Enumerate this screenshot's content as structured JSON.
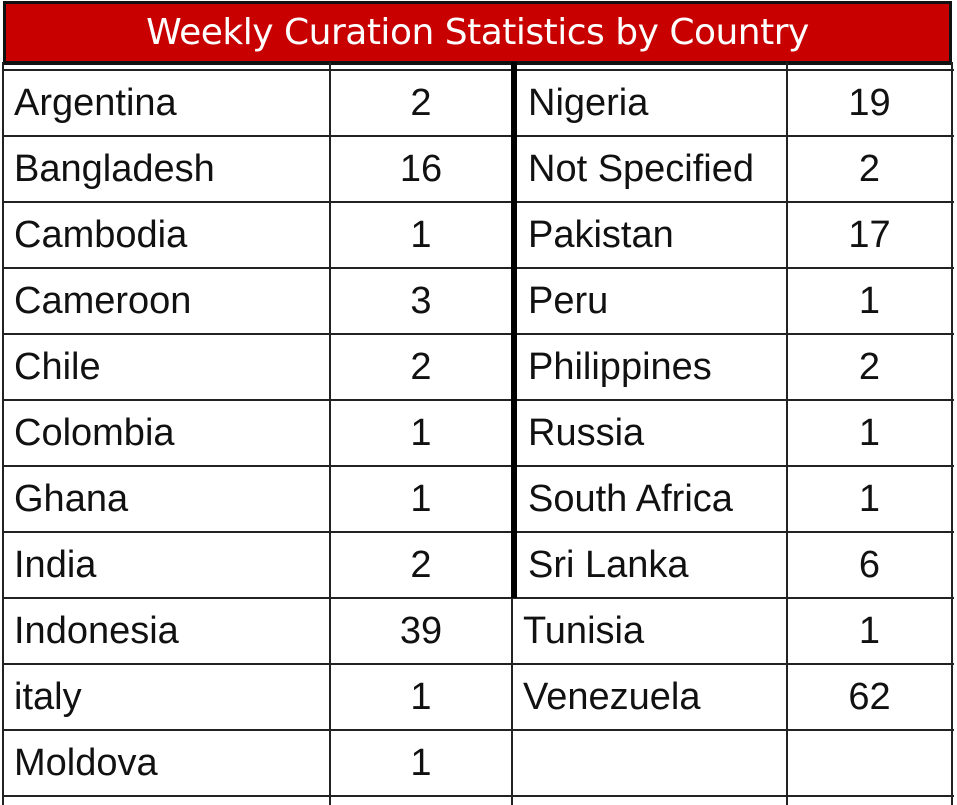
{
  "title": "Weekly Curation Statistics by Country",
  "colors": {
    "header_bg": "#c80000",
    "header_text": "#ffffff",
    "grid_lines": "#222222",
    "text": "#111111"
  },
  "chart_data": {
    "type": "table",
    "title": "Weekly Curation Statistics by Country",
    "left_columns": [
      {
        "country": "Argentina",
        "count": "2"
      },
      {
        "country": "Bangladesh",
        "count": "16"
      },
      {
        "country": "Cambodia",
        "count": "1"
      },
      {
        "country": "Cameroon",
        "count": "3"
      },
      {
        "country": "Chile",
        "count": "2"
      },
      {
        "country": "Colombia",
        "count": "1"
      },
      {
        "country": "Ghana",
        "count": "1"
      },
      {
        "country": "India",
        "count": "2"
      },
      {
        "country": "Indonesia",
        "count": "39"
      },
      {
        "country": "italy",
        "count": "1"
      },
      {
        "country": "Moldova",
        "count": "1"
      }
    ],
    "right_columns": [
      {
        "country": "Nigeria",
        "count": "19"
      },
      {
        "country": "Not Specified",
        "count": "2"
      },
      {
        "country": "Pakistan",
        "count": "17"
      },
      {
        "country": "Peru",
        "count": "1"
      },
      {
        "country": "Philippines",
        "count": "2"
      },
      {
        "country": "Russia",
        "count": "1"
      },
      {
        "country": "South Africa",
        "count": "1"
      },
      {
        "country": "Sri Lanka",
        "count": "6"
      },
      {
        "country": "Tunisia",
        "count": "1"
      },
      {
        "country": "Venezuela",
        "count": "62"
      },
      {
        "country": "",
        "count": ""
      }
    ]
  }
}
